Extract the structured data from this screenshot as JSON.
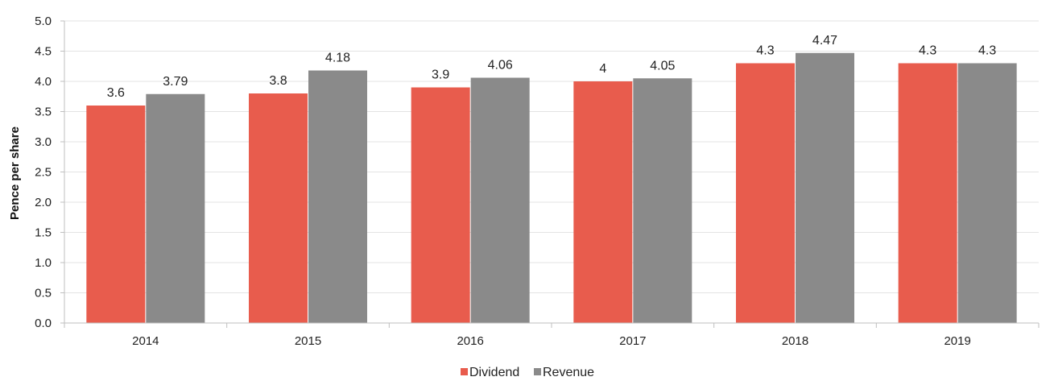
{
  "chart_data": {
    "type": "bar",
    "categories": [
      "2014",
      "2015",
      "2016",
      "2017",
      "2018",
      "2019"
    ],
    "series": [
      {
        "name": "Dividend",
        "color": "#e85c4d",
        "values": [
          3.6,
          3.8,
          3.9,
          4,
          4.3,
          4.3
        ],
        "labels": [
          "3.6",
          "3.8",
          "3.9",
          "4",
          "4.3",
          "4.3"
        ]
      },
      {
        "name": "Revenue",
        "color": "#8a8a8a",
        "values": [
          3.79,
          4.18,
          4.06,
          4.05,
          4.47,
          4.3
        ],
        "labels": [
          "3.79",
          "4.18",
          "4.06",
          "4.05",
          "4.47",
          "4.3"
        ]
      }
    ],
    "title": "",
    "xlabel": "",
    "ylabel": "Pence per share",
    "ylim": [
      0,
      5
    ],
    "yticks": [
      "0.0",
      "0.5",
      "1.0",
      "1.5",
      "2.0",
      "2.5",
      "3.0",
      "3.5",
      "4.0",
      "4.5",
      "5.0"
    ],
    "grid": true,
    "legend_position": "bottom-center"
  }
}
